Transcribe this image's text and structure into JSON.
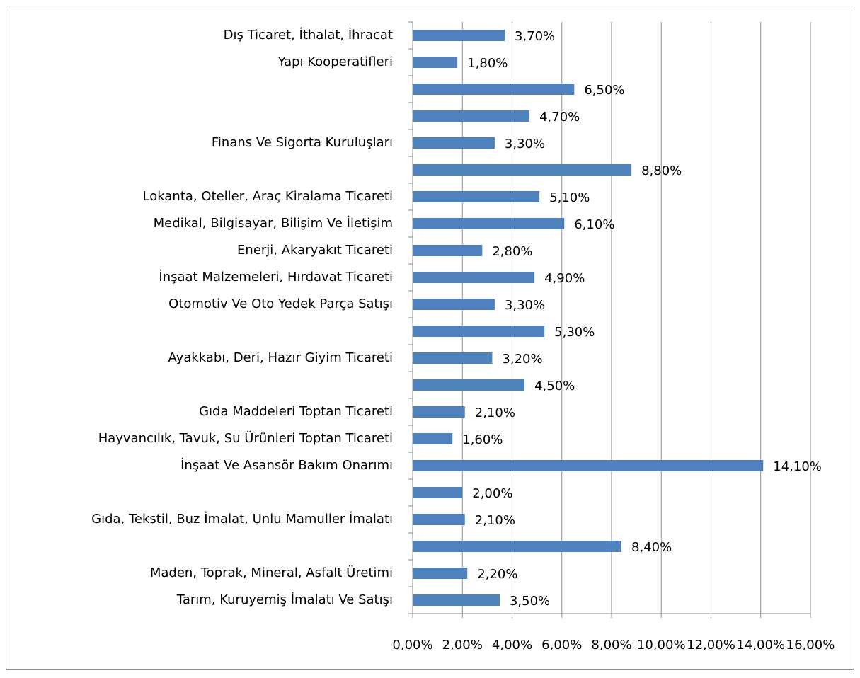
{
  "chart_data": {
    "type": "bar",
    "orientation": "horizontal",
    "categories": [
      "Dış Ticaret,  İthalat, İhracat",
      "Yapı Kooperatifleri",
      null,
      null,
      "Finans Ve Sigorta Kuruluşları",
      null,
      "Lokanta, Oteller, Araç Kiralama Ticareti",
      "Medikal, Bilgisayar, Bilişim Ve İletişim",
      "Enerji, Akaryakıt Ticareti",
      "İnşaat Malzemeleri, Hırdavat Ticareti",
      "Otomotiv Ve Oto Yedek Parça Satışı",
      null,
      "Ayakkabı, Deri, Hazır Giyim Ticareti",
      null,
      "Gıda Maddeleri Toptan Ticareti",
      "Hayvancılık, Tavuk, Su Ürünleri Toptan Ticareti",
      "İnşaat Ve Asansör Bakım Onarımı",
      null,
      "Gıda, Tekstil, Buz İmalat, Unlu Mamuller İmalatı",
      null,
      "Maden, Toprak, Mineral, Asfalt Üretimi",
      "Tarım, Kuruyemiş İmalatı Ve Satışı"
    ],
    "values": [
      3.7,
      1.8,
      6.5,
      4.7,
      3.3,
      8.8,
      5.1,
      6.1,
      2.8,
      4.9,
      3.3,
      5.3,
      3.2,
      4.5,
      2.1,
      1.6,
      14.1,
      2.0,
      2.1,
      8.4,
      2.2,
      3.5
    ],
    "value_labels": [
      "3,70%",
      "1,80%",
      "6,50%",
      "4,70%",
      "3,30%",
      "8,80%",
      "5,10%",
      "6,10%",
      "2,80%",
      "4,90%",
      "3,30%",
      "5,30%",
      "3,20%",
      "4,50%",
      "2,10%",
      "1,60%",
      "14,10%",
      "2,00%",
      "2,10%",
      "8,40%",
      "2,20%",
      "3,50%"
    ],
    "color": "#4f81bd",
    "xlim": [
      0,
      16
    ],
    "xticks": [
      {
        "value": 0,
        "label": "0,00%"
      },
      {
        "value": 2,
        "label": "2,00%"
      },
      {
        "value": 4,
        "label": "4,00%"
      },
      {
        "value": 6,
        "label": "6,00%"
      },
      {
        "value": 8,
        "label": "8,00%"
      },
      {
        "value": 10,
        "label": "10,00%"
      },
      {
        "value": 12,
        "label": "12,00%"
      },
      {
        "value": 14,
        "label": "14,00%"
      },
      {
        "value": 16,
        "label": "16,00%"
      }
    ],
    "grid": true
  }
}
